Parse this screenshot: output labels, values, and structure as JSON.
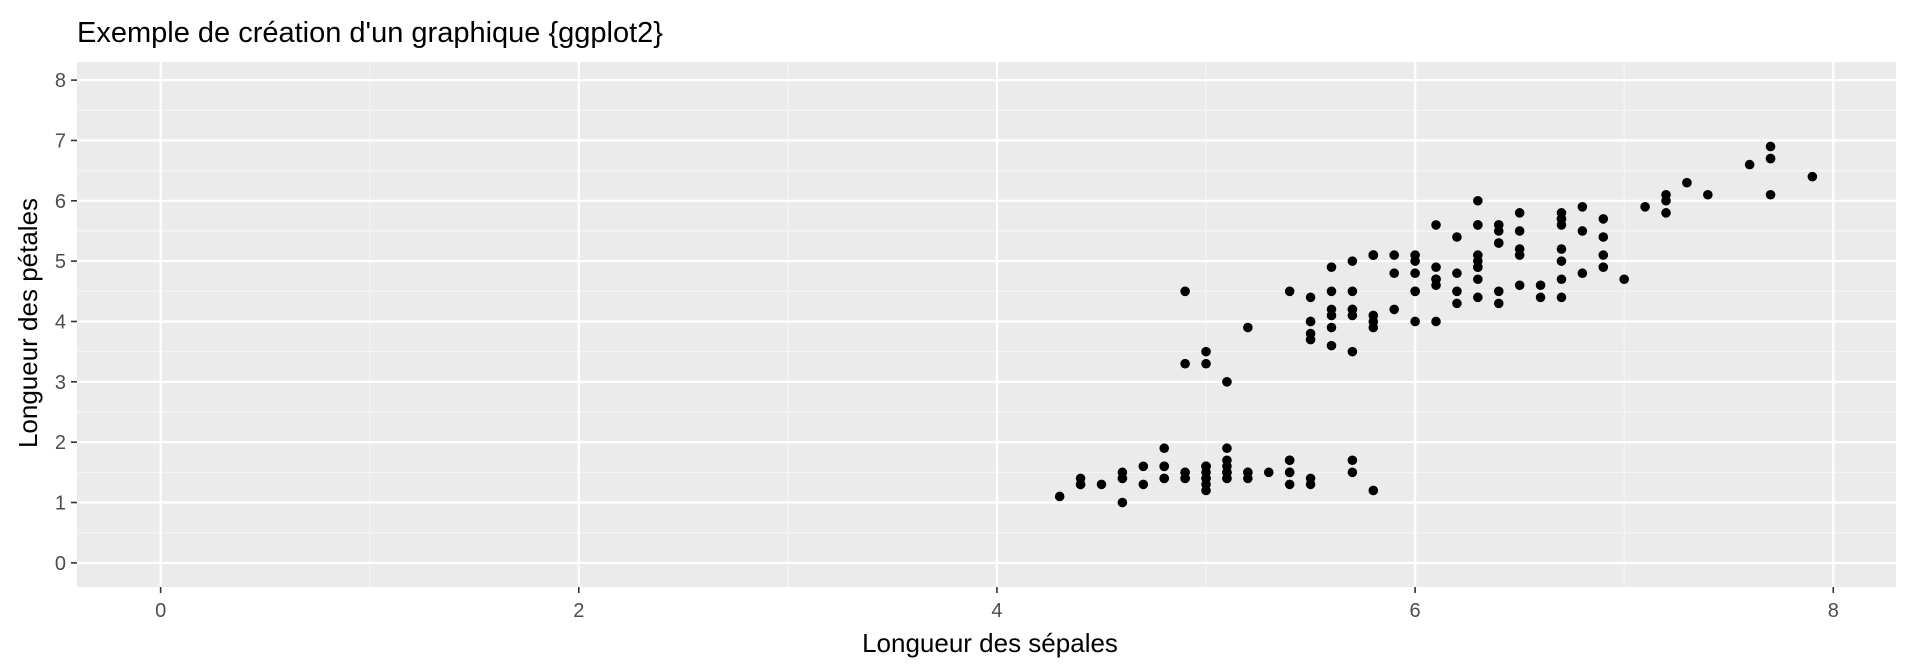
{
  "chart_data": {
    "type": "scatter",
    "title": "Exemple de création d'un graphique {ggplot2}",
    "xlabel": "Longueur des sépales",
    "ylabel": "Longueur des pétales",
    "xlim": [
      -0.4,
      8.3
    ],
    "ylim": [
      -0.4,
      8.3
    ],
    "x_ticks": [
      0,
      2,
      4,
      6,
      8
    ],
    "y_ticks": [
      0,
      1,
      2,
      3,
      4,
      5,
      6,
      7,
      8
    ],
    "x_tick_labels": [
      "0",
      "2",
      "4",
      "6",
      "8"
    ],
    "y_tick_labels": [
      "0",
      "1",
      "2",
      "3",
      "4",
      "5",
      "6",
      "7",
      "8"
    ],
    "grid": true,
    "legend": "none",
    "colors": {
      "panel_background": "#ebebeb",
      "grid_major": "#ffffff",
      "grid_minor": "#f5f5f5",
      "point": "#000000",
      "tick": "#333333"
    },
    "points": [
      [
        5.1,
        1.4
      ],
      [
        4.9,
        1.4
      ],
      [
        4.7,
        1.3
      ],
      [
        4.6,
        1.5
      ],
      [
        5.0,
        1.4
      ],
      [
        5.4,
        1.7
      ],
      [
        4.6,
        1.4
      ],
      [
        5.0,
        1.5
      ],
      [
        4.4,
        1.4
      ],
      [
        4.9,
        1.5
      ],
      [
        5.4,
        1.5
      ],
      [
        4.8,
        1.6
      ],
      [
        4.8,
        1.4
      ],
      [
        4.3,
        1.1
      ],
      [
        5.8,
        1.2
      ],
      [
        5.7,
        1.5
      ],
      [
        5.4,
        1.3
      ],
      [
        5.1,
        1.4
      ],
      [
        5.7,
        1.7
      ],
      [
        5.1,
        1.5
      ],
      [
        5.4,
        1.7
      ],
      [
        5.1,
        1.5
      ],
      [
        4.6,
        1.0
      ],
      [
        5.1,
        1.7
      ],
      [
        4.8,
        1.9
      ],
      [
        5.0,
        1.6
      ],
      [
        5.0,
        1.6
      ],
      [
        5.2,
        1.5
      ],
      [
        5.2,
        1.4
      ],
      [
        4.7,
        1.6
      ],
      [
        4.8,
        1.6
      ],
      [
        5.4,
        1.5
      ],
      [
        5.2,
        1.5
      ],
      [
        5.5,
        1.4
      ],
      [
        4.9,
        1.5
      ],
      [
        5.0,
        1.2
      ],
      [
        5.5,
        1.3
      ],
      [
        4.9,
        1.4
      ],
      [
        4.4,
        1.3
      ],
      [
        5.1,
        1.5
      ],
      [
        5.0,
        1.3
      ],
      [
        4.5,
        1.3
      ],
      [
        4.4,
        1.3
      ],
      [
        5.0,
        1.6
      ],
      [
        5.1,
        1.9
      ],
      [
        4.8,
        1.4
      ],
      [
        5.1,
        1.6
      ],
      [
        4.6,
        1.4
      ],
      [
        5.3,
        1.5
      ],
      [
        5.0,
        1.4
      ],
      [
        7.0,
        4.7
      ],
      [
        6.4,
        4.5
      ],
      [
        6.9,
        4.9
      ],
      [
        5.5,
        4.0
      ],
      [
        6.5,
        4.6
      ],
      [
        5.7,
        4.5
      ],
      [
        6.3,
        4.7
      ],
      [
        4.9,
        3.3
      ],
      [
        6.6,
        4.6
      ],
      [
        5.2,
        3.9
      ],
      [
        5.0,
        3.5
      ],
      [
        5.9,
        4.2
      ],
      [
        6.0,
        4.0
      ],
      [
        6.1,
        4.7
      ],
      [
        5.6,
        3.6
      ],
      [
        6.7,
        4.4
      ],
      [
        5.6,
        4.5
      ],
      [
        5.8,
        4.1
      ],
      [
        6.2,
        4.5
      ],
      [
        5.6,
        3.9
      ],
      [
        5.9,
        4.8
      ],
      [
        6.1,
        4.0
      ],
      [
        6.3,
        4.9
      ],
      [
        6.1,
        4.7
      ],
      [
        6.4,
        4.3
      ],
      [
        6.6,
        4.4
      ],
      [
        6.8,
        4.8
      ],
      [
        6.7,
        5.0
      ],
      [
        6.0,
        4.5
      ],
      [
        5.7,
        3.5
      ],
      [
        5.5,
        3.8
      ],
      [
        5.5,
        3.7
      ],
      [
        5.8,
        3.9
      ],
      [
        6.0,
        5.1
      ],
      [
        5.4,
        4.5
      ],
      [
        6.0,
        4.5
      ],
      [
        6.7,
        4.7
      ],
      [
        6.3,
        4.4
      ],
      [
        5.6,
        4.1
      ],
      [
        5.5,
        4.0
      ],
      [
        5.5,
        4.4
      ],
      [
        6.1,
        4.6
      ],
      [
        5.8,
        4.0
      ],
      [
        5.0,
        3.3
      ],
      [
        5.6,
        4.2
      ],
      [
        5.7,
        4.2
      ],
      [
        5.7,
        4.2
      ],
      [
        6.2,
        4.3
      ],
      [
        5.1,
        3.0
      ],
      [
        5.7,
        4.1
      ],
      [
        6.3,
        6.0
      ],
      [
        5.8,
        5.1
      ],
      [
        7.1,
        5.9
      ],
      [
        6.3,
        5.6
      ],
      [
        6.5,
        5.8
      ],
      [
        7.6,
        6.6
      ],
      [
        4.9,
        4.5
      ],
      [
        7.3,
        6.3
      ],
      [
        6.7,
        5.8
      ],
      [
        7.2,
        6.1
      ],
      [
        6.5,
        5.1
      ],
      [
        6.4,
        5.3
      ],
      [
        6.8,
        5.5
      ],
      [
        5.7,
        5.0
      ],
      [
        5.8,
        5.1
      ],
      [
        6.4,
        5.3
      ],
      [
        6.5,
        5.5
      ],
      [
        7.7,
        6.7
      ],
      [
        7.7,
        6.9
      ],
      [
        6.0,
        5.0
      ],
      [
        6.9,
        5.7
      ],
      [
        5.6,
        4.9
      ],
      [
        7.7,
        6.7
      ],
      [
        6.3,
        4.9
      ],
      [
        6.7,
        5.7
      ],
      [
        7.2,
        6.0
      ],
      [
        6.2,
        4.8
      ],
      [
        6.1,
        4.9
      ],
      [
        6.4,
        5.6
      ],
      [
        7.2,
        5.8
      ],
      [
        7.4,
        6.1
      ],
      [
        7.9,
        6.4
      ],
      [
        6.4,
        5.6
      ],
      [
        6.3,
        5.1
      ],
      [
        6.1,
        5.6
      ],
      [
        7.7,
        6.1
      ],
      [
        6.3,
        5.6
      ],
      [
        6.4,
        5.5
      ],
      [
        6.0,
        4.8
      ],
      [
        6.9,
        5.4
      ],
      [
        6.7,
        5.6
      ],
      [
        6.9,
        5.1
      ],
      [
        5.8,
        5.1
      ],
      [
        6.8,
        5.9
      ],
      [
        6.7,
        5.7
      ],
      [
        6.7,
        5.2
      ],
      [
        6.3,
        5.0
      ],
      [
        6.5,
        5.2
      ],
      [
        6.2,
        5.4
      ],
      [
        5.9,
        5.1
      ]
    ]
  }
}
